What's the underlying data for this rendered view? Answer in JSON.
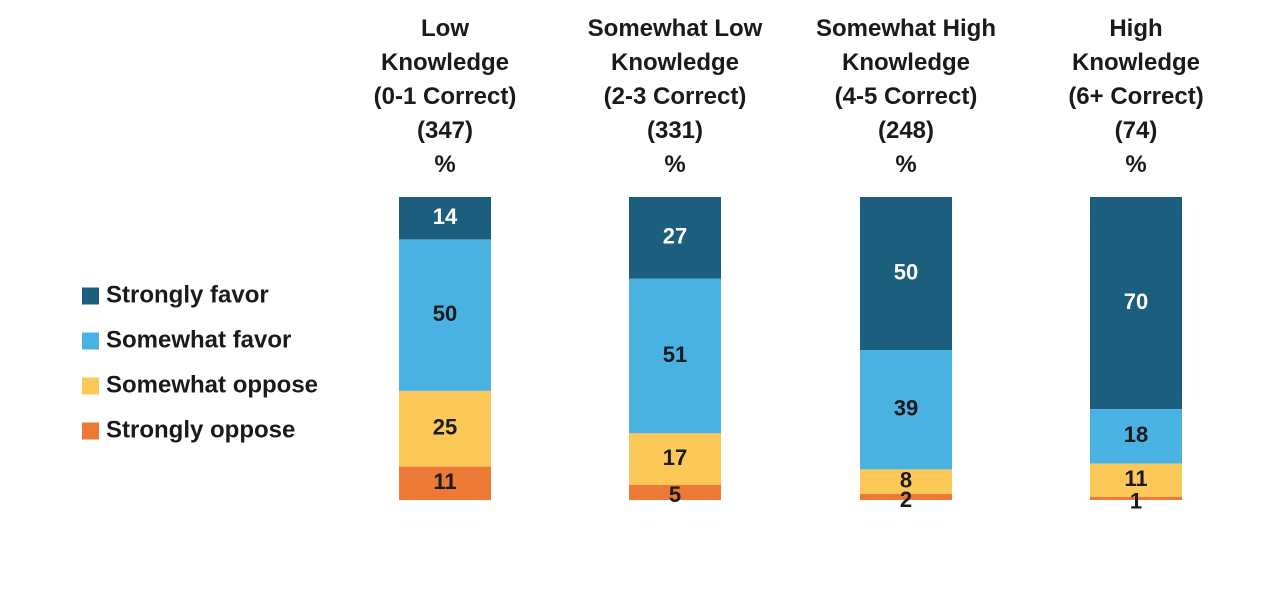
{
  "chart_data": {
    "type": "bar",
    "stacked": true,
    "unit": "%",
    "categories": [
      {
        "header": [
          "Low",
          "Knowledge",
          "(0-1 Correct)",
          "(347)",
          "%"
        ]
      },
      {
        "header": [
          "Somewhat Low",
          "Knowledge",
          "(2-3 Correct)",
          "(331)",
          "%"
        ]
      },
      {
        "header": [
          "Somewhat High",
          "Knowledge",
          "(4-5 Correct)",
          "(248)",
          "%"
        ]
      },
      {
        "header": [
          "High",
          "Knowledge",
          "(6+ Correct)",
          "(74)",
          "%"
        ]
      }
    ],
    "series": [
      {
        "name": "Strongly favor",
        "color": "#1b5e7e",
        "label_color": "#ffffff",
        "values": [
          14,
          27,
          50,
          70
        ]
      },
      {
        "name": "Somewhat favor",
        "color": "#4ab2e2",
        "label_color": "#1a1a1a",
        "values": [
          50,
          51,
          39,
          18
        ]
      },
      {
        "name": "Somewhat oppose",
        "color": "#fcc857",
        "label_color": "#1a1a1a",
        "values": [
          25,
          17,
          8,
          11
        ]
      },
      {
        "name": "Strongly oppose",
        "color": "#ec7a36",
        "label_color": "#1a1a1a",
        "values": [
          11,
          5,
          2,
          1
        ]
      }
    ],
    "legend_position": "left",
    "grid": false
  }
}
